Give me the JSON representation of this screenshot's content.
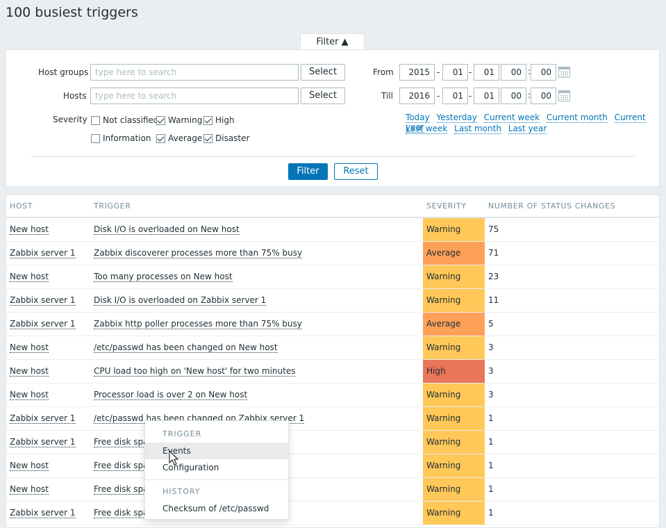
{
  "page": {
    "title": "100 busiest triggers"
  },
  "filter": {
    "tab_label": "Filter ▲",
    "host_groups_label": "Host groups",
    "hosts_label": "Hosts",
    "severity_label": "Severity",
    "search_placeholder": "type here to search",
    "select_label": "Select",
    "severities": [
      {
        "label": "Not classified",
        "checked": false
      },
      {
        "label": "Warning",
        "checked": true
      },
      {
        "label": "High",
        "checked": true
      },
      {
        "label": "Information",
        "checked": false
      },
      {
        "label": "Average",
        "checked": true
      },
      {
        "label": "Disaster",
        "checked": true
      }
    ],
    "from_label": "From",
    "till_label": "Till",
    "from": {
      "year": "2015",
      "month": "01",
      "day": "01",
      "hour": "00",
      "minute": "00"
    },
    "till": {
      "year": "2016",
      "month": "01",
      "day": "01",
      "hour": "00",
      "minute": "00"
    },
    "quick_links_row1": [
      "Today",
      "Yesterday",
      "Current week",
      "Current month",
      "Current year"
    ],
    "quick_links_row2": [
      "Last week",
      "Last month",
      "Last year"
    ],
    "filter_button": "Filter",
    "reset_button": "Reset"
  },
  "table": {
    "headers": [
      "HOST",
      "TRIGGER",
      "SEVERITY",
      "NUMBER OF STATUS CHANGES"
    ],
    "rows": [
      {
        "host": "New host",
        "trigger": "Disk I/O is overloaded on New host",
        "severity": "Warning",
        "changes": "75"
      },
      {
        "host": "Zabbix server 1",
        "trigger": "Zabbix discoverer processes more than 75% busy",
        "severity": "Average",
        "changes": "71"
      },
      {
        "host": "New host",
        "trigger": "Too many processes on New host",
        "severity": "Warning",
        "changes": "23"
      },
      {
        "host": "Zabbix server 1",
        "trigger": "Disk I/O is overloaded on Zabbix server 1",
        "severity": "Warning",
        "changes": "11"
      },
      {
        "host": "Zabbix server 1",
        "trigger": "Zabbix http poller processes more than 75% busy",
        "severity": "Average",
        "changes": "5"
      },
      {
        "host": "New host",
        "trigger": "/etc/passwd has been changed on New host",
        "severity": "Warning",
        "changes": "3"
      },
      {
        "host": "New host",
        "trigger": "CPU load too high on 'New host' for two minutes",
        "severity": "High",
        "changes": "3"
      },
      {
        "host": "New host",
        "trigger": "Processor load is over 2 on New host",
        "severity": "Warning",
        "changes": "3"
      },
      {
        "host": "Zabbix server 1",
        "trigger": "/etc/passwd has been changed on Zabbix server 1",
        "severity": "Warning",
        "changes": "1"
      },
      {
        "host": "Zabbix server 1",
        "trigger": "Free disk spa",
        "severity": "Warning",
        "changes": "1"
      },
      {
        "host": "New host",
        "trigger": "Free disk spa",
        "severity": "Warning",
        "changes": "1"
      },
      {
        "host": "New host",
        "trigger": "Free disk spa",
        "severity": "Warning",
        "changes": "1"
      },
      {
        "host": "Zabbix server 1",
        "trigger": "Free disk spa",
        "severity": "Warning",
        "changes": "1"
      }
    ]
  },
  "context_menu": {
    "trigger_header": "TRIGGER",
    "events": "Events",
    "configuration": "Configuration",
    "history_header": "HISTORY",
    "history_item": "Checksum of /etc/passwd"
  },
  "colors": {
    "warning": "#ffc859",
    "average": "#ffa059",
    "high": "#e97659",
    "accent": "#0275b8"
  }
}
